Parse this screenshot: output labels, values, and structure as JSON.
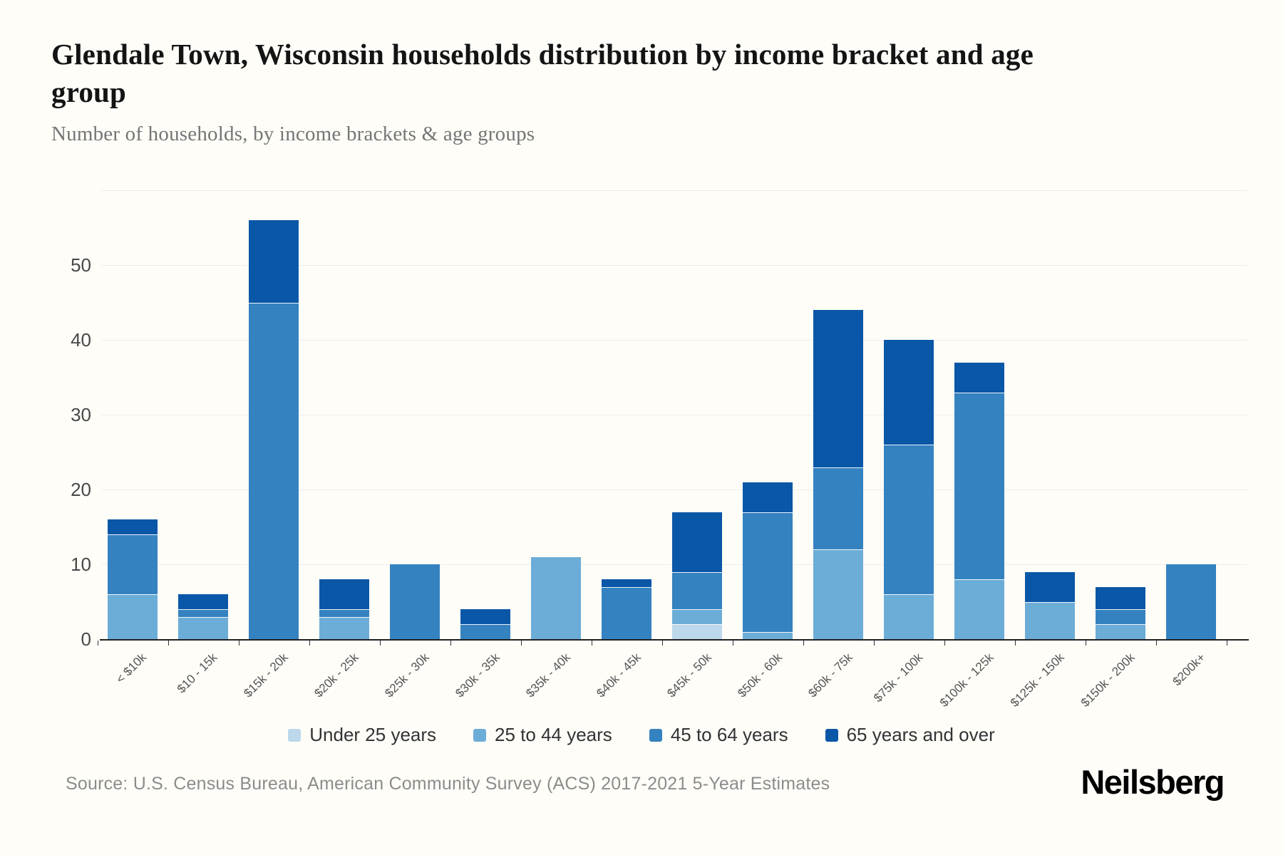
{
  "title": "Glendale Town, Wisconsin households distribution by income bracket and age group",
  "subtitle": "Number of households, by income brackets & age groups",
  "source": "Source: U.S. Census Bureau, American Community Survey (ACS) 2017-2021 5-Year Estimates",
  "logo": "Neilsberg",
  "chart_data": {
    "type": "bar",
    "stacked": true,
    "title": "Glendale Town, Wisconsin households distribution by income bracket and age group",
    "xlabel": "",
    "ylabel": "Number of households",
    "categories": [
      "< $10k",
      "$10 - 15k",
      "$15k - 20k",
      "$20k - 25k",
      "$25k - 30k",
      "$30k - 35k",
      "$35k - 40k",
      "$40k - 45k",
      "$45k - 50k",
      "$50k - 60k",
      "$60k - 75k",
      "$75k - 100k",
      "$100k - 125k",
      "$125k - 150k",
      "$150k - 200k",
      "$200k+"
    ],
    "series": [
      {
        "name": "Under 25 years",
        "color": "#bcd8ea",
        "values": [
          0,
          0,
          0,
          0,
          0,
          0,
          0,
          0,
          2,
          0,
          0,
          0,
          0,
          0,
          0,
          0
        ]
      },
      {
        "name": "25 to 44 years",
        "color": "#6cadd8",
        "values": [
          6,
          3,
          0,
          3,
          0,
          0,
          11,
          0,
          2,
          1,
          12,
          6,
          8,
          5,
          2,
          0
        ]
      },
      {
        "name": "45 to 64 years",
        "color": "#3482c0",
        "values": [
          8,
          1,
          45,
          1,
          10,
          2,
          0,
          7,
          5,
          16,
          11,
          20,
          25,
          0,
          2,
          10
        ]
      },
      {
        "name": "65 years and over",
        "color": "#0b57a7",
        "values": [
          2,
          2,
          11,
          4,
          0,
          2,
          0,
          1,
          8,
          4,
          21,
          14,
          4,
          4,
          3,
          0
        ]
      }
    ],
    "totals": [
      16,
      6,
      56,
      8,
      10,
      4,
      11,
      8,
      17,
      21,
      44,
      40,
      37,
      9,
      7,
      10
    ],
    "yticks": [
      0,
      10,
      20,
      30,
      40,
      50
    ],
    "ylim": [
      0,
      62
    ],
    "grid": true,
    "legend_position": "bottom"
  }
}
